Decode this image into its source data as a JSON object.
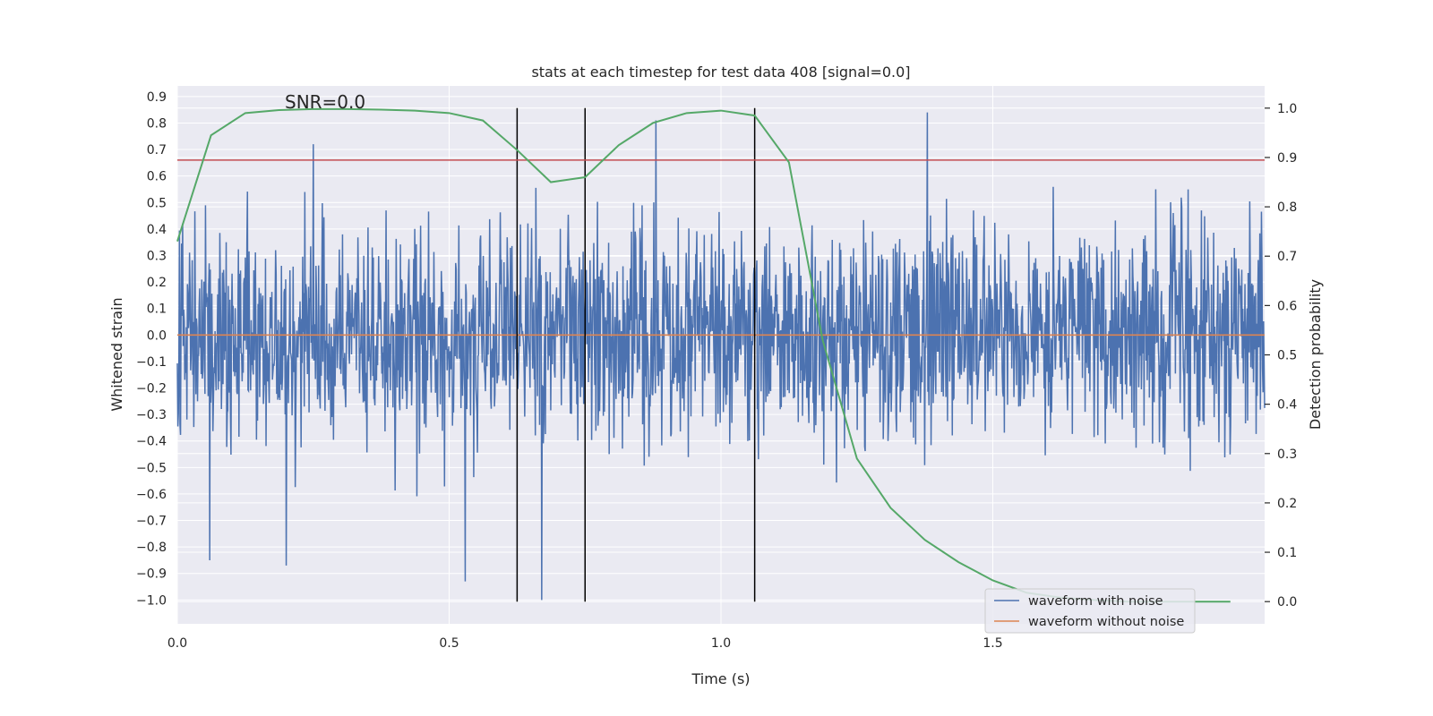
{
  "chart_data": {
    "type": "line",
    "title": "stats at each timestep for test data 408 [signal=0.0]",
    "xlabel": "Time (s)",
    "ylabel": "Whitened strain",
    "y2label": "Detection probability",
    "annotation": "SNR=0.0",
    "xlim": [
      0.0,
      2.0
    ],
    "ylim": [
      -1.09,
      0.94
    ],
    "y2lim": [
      -0.045,
      1.045
    ],
    "x_ticks": [
      0.0,
      0.5,
      1.0,
      1.5
    ],
    "x_tick_labels": [
      "0.0",
      "0.5",
      "1.0",
      "1.5"
    ],
    "y_ticks": [
      0.9,
      0.8,
      0.7,
      0.6,
      0.5,
      0.4,
      0.3,
      0.2,
      0.1,
      0.0,
      -0.1,
      -0.2,
      -0.3,
      -0.4,
      -0.5,
      -0.6,
      -0.7,
      -0.8,
      -0.9,
      -1.0
    ],
    "y_tick_labels": [
      "0.9",
      "0.8",
      "0.7",
      "0.6",
      "0.5",
      "0.4",
      "0.3",
      "0.2",
      "0.1",
      "0.0",
      "−0.1",
      "−0.2",
      "−0.3",
      "−0.4",
      "−0.5",
      "−0.6",
      "−0.7",
      "−0.8",
      "−0.9",
      "−1.0"
    ],
    "y2_ticks": [
      1.0,
      0.9,
      0.8,
      0.7,
      0.6,
      0.5,
      0.4,
      0.3,
      0.2,
      0.1,
      0.0
    ],
    "y2_tick_labels": [
      "1.0",
      "0.9",
      "0.8",
      "0.7",
      "0.6",
      "0.5",
      "0.4",
      "0.3",
      "0.2",
      "0.1",
      "0.0"
    ],
    "grid": true,
    "legend_position": "bottom-right",
    "series": [
      {
        "name": "waveform with noise",
        "color": "#4c72b0",
        "axis": "left",
        "x_range": [
          0.0,
          2.0
        ],
        "n_samples": 2048,
        "amplitude_range": [
          -1.0,
          0.84
        ],
        "peaks": [
          {
            "x": 0.25,
            "y": 0.72
          },
          {
            "x": 0.88,
            "y": 0.81
          },
          {
            "x": 1.38,
            "y": 0.84
          },
          {
            "x": 0.67,
            "y": -1.0
          },
          {
            "x": 0.53,
            "y": -0.93
          },
          {
            "x": 0.2,
            "y": -0.87
          },
          {
            "x": 0.06,
            "y": -0.85
          }
        ]
      },
      {
        "name": "waveform without noise",
        "color": "#dd8452",
        "axis": "left",
        "x": [
          0.0,
          2.0
        ],
        "y": [
          0.0,
          0.0
        ]
      },
      {
        "color": "#55a868",
        "axis": "right",
        "x": [
          0.0,
          0.062,
          0.125,
          0.187,
          0.25,
          0.312,
          0.375,
          0.437,
          0.5,
          0.562,
          0.625,
          0.687,
          0.75,
          0.812,
          0.875,
          0.937,
          1.0,
          1.062,
          1.125,
          1.187,
          1.25,
          1.312,
          1.375,
          1.437,
          1.5,
          1.562,
          1.625,
          1.687,
          1.75,
          1.812,
          1.875,
          1.937
        ],
        "y": [
          0.73,
          0.945,
          0.99,
          0.996,
          0.998,
          0.998,
          0.997,
          0.995,
          0.99,
          0.975,
          0.915,
          0.85,
          0.86,
          0.925,
          0.97,
          0.99,
          0.995,
          0.985,
          0.89,
          0.53,
          0.29,
          0.19,
          0.125,
          0.08,
          0.043,
          0.018,
          0.008,
          0.003,
          0.0,
          0.0,
          0.0,
          0.0
        ]
      },
      {
        "color": "#c44e52",
        "axis": "left",
        "type": "hline",
        "y": 0.66
      }
    ],
    "vertical_lines": {
      "color": "#000000",
      "x": [
        0.625,
        0.75,
        1.062
      ]
    }
  },
  "colors": {
    "plot_background": "#eaeaf2",
    "grid": "#ffffff",
    "text": "#262626"
  }
}
